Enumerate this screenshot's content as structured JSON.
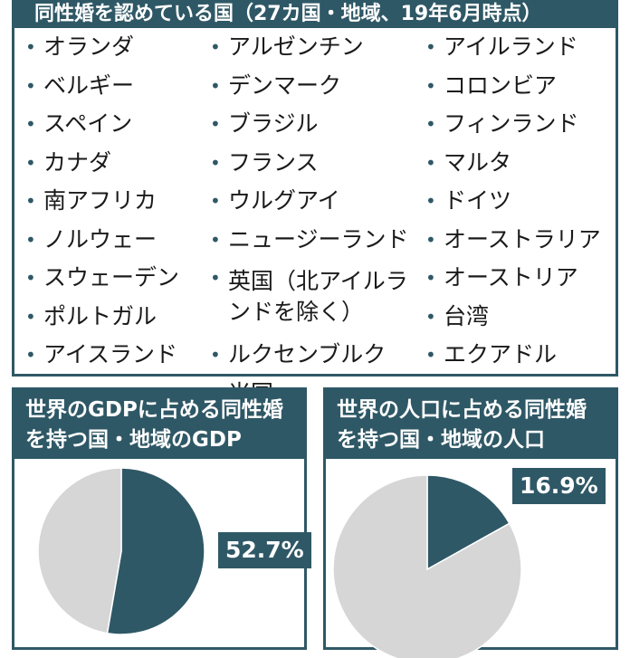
{
  "list_panel": {
    "title": "同性婚を認めている国（27カ国・地域、19年6月時点）",
    "columns": [
      [
        "オランダ",
        "ベルギー",
        "スペイン",
        "カナダ",
        "南アフリカ",
        "ノルウェー",
        "スウェーデン",
        "ポルトガル",
        "アイスランド"
      ],
      [
        "アルゼンチン",
        "デンマーク",
        "ブラジル",
        "フランス",
        "ウルグアイ",
        "ニュージーランド",
        "英国（北アイルランドを除く）",
        "ルクセンブルク",
        "米国"
      ],
      [
        "アイルランド",
        "コロンビア",
        "フィンランド",
        "マルタ",
        "ドイツ",
        "オーストラリア",
        "オーストリア",
        "台湾",
        "エクアドル"
      ]
    ]
  },
  "colors": {
    "primary": "#2f5866",
    "secondary": "#d6d6d6"
  },
  "chart_data": [
    {
      "type": "pie",
      "title": "世界のGDPに占める同性婚を持つ国・地域のGDP",
      "values": [
        52.7,
        47.3
      ],
      "data_labels": [
        "52.7%",
        ""
      ],
      "colors": [
        "#2f5866",
        "#d6d6d6"
      ]
    },
    {
      "type": "pie",
      "title": "世界の人口に占める同性婚を持つ国・地域の人口",
      "values": [
        16.9,
        83.1
      ],
      "data_labels": [
        "16.9%",
        ""
      ],
      "colors": [
        "#2f5866",
        "#d6d6d6"
      ]
    }
  ]
}
